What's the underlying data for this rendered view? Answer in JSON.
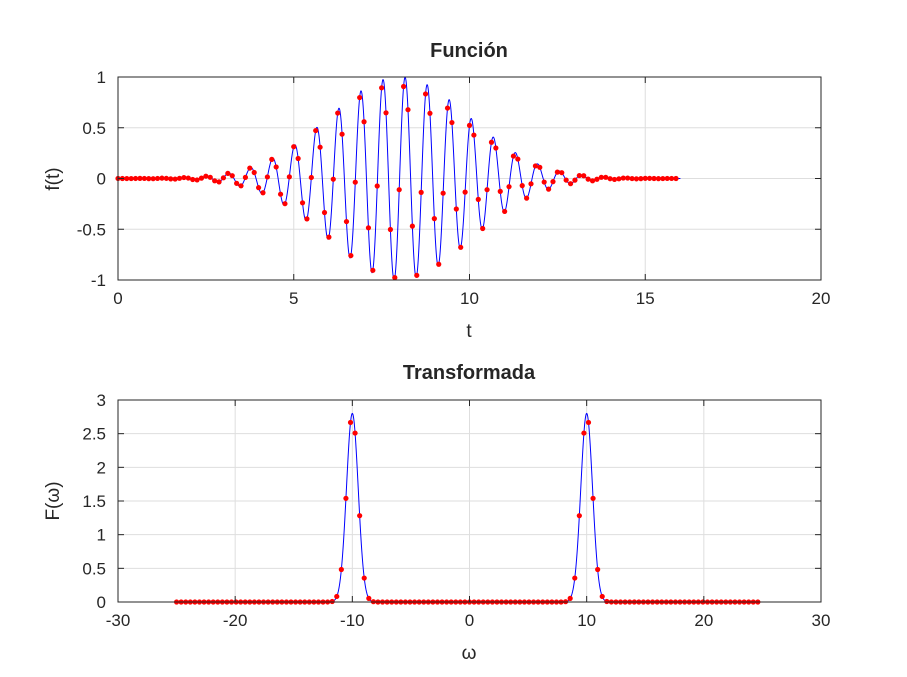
{
  "chart_data": [
    {
      "type": "line",
      "title": "Función",
      "xlabel": "t",
      "ylabel": "f(t)",
      "xlim": [
        0,
        20
      ],
      "ylim": [
        -1,
        1
      ],
      "xticks": [
        0,
        5,
        10,
        15,
        20
      ],
      "yticks": [
        -1,
        -0.5,
        0,
        0.5,
        1
      ],
      "xtick_labels": [
        "0",
        "5",
        "10",
        "15",
        "20"
      ],
      "ytick_labels": [
        "-1",
        "-0.5",
        "0",
        "0.5",
        "1"
      ],
      "grid": true,
      "series": [
        {
          "kind": "line",
          "color": "#0000ff",
          "x_range": [
            0,
            16
          ],
          "formula": "exp(-((t-8)^2)/8) * cos(10*t)"
        },
        {
          "kind": "points",
          "color": "#ff0000",
          "x_range": [
            0,
            16
          ],
          "n_points": 128,
          "formula": "exp(-((t-8)^2)/8) * cos(10*t)"
        }
      ]
    },
    {
      "type": "line",
      "title": "Transformada",
      "xlabel": "ω",
      "ylabel": "F(ω)",
      "xlim": [
        -30,
        30
      ],
      "ylim": [
        0,
        3
      ],
      "xticks": [
        -30,
        -20,
        -10,
        0,
        10,
        20,
        30
      ],
      "yticks": [
        0,
        0.5,
        1,
        1.5,
        2,
        2.5,
        3
      ],
      "xtick_labels": [
        "-30",
        "-20",
        "-10",
        "0",
        "10",
        "20",
        "30"
      ],
      "ytick_labels": [
        "0",
        "0.5",
        "1",
        "1.5",
        "2",
        "2.5",
        "3"
      ],
      "grid": true,
      "series": [
        {
          "kind": "line",
          "color": "#0000ff",
          "x_range": [
            -25,
            25
          ],
          "peaks": [
            {
              "x": -10,
              "height": 2.8
            },
            {
              "x": 10,
              "height": 2.8
            }
          ],
          "peak_width": 0.5
        },
        {
          "kind": "points",
          "color": "#ff0000",
          "x_range": [
            -25,
            25
          ],
          "n_points": 128,
          "peaks": [
            {
              "x": -10,
              "height": 2.8
            },
            {
              "x": 10,
              "height": 2.8
            }
          ],
          "peak_width": 0.5
        }
      ]
    }
  ]
}
